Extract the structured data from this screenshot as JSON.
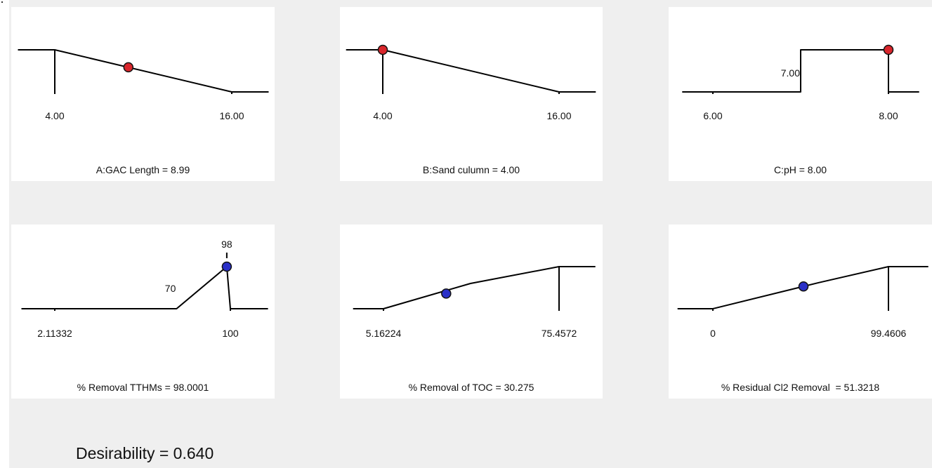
{
  "chart_data": [
    {
      "type": "line",
      "kind": "factor",
      "caption": "A:GAC Length = 8.99",
      "ticks": [
        {
          "value": 4,
          "label": "4.00"
        },
        {
          "value": 16,
          "label": "16.00"
        }
      ],
      "extra_labels": [],
      "xlim": [
        4,
        16
      ],
      "ylim": [
        0,
        1
      ],
      "curve": [
        [
          1.5,
          1
        ],
        [
          4,
          1
        ],
        [
          16,
          0
        ],
        [
          18.5,
          0
        ]
      ],
      "marker": {
        "x": 8.99,
        "y": 0.585,
        "color": "#d9262c"
      }
    },
    {
      "type": "line",
      "kind": "factor",
      "caption": "B:Sand culumn = 4.00",
      "ticks": [
        {
          "value": 4,
          "label": "4.00"
        },
        {
          "value": 16,
          "label": "16.00"
        }
      ],
      "extra_labels": [],
      "xlim": [
        4,
        16
      ],
      "ylim": [
        0,
        1
      ],
      "curve": [
        [
          1.5,
          1
        ],
        [
          4,
          1
        ],
        [
          16,
          0
        ],
        [
          18.5,
          0
        ]
      ],
      "marker": {
        "x": 4.0,
        "y": 1,
        "color": "#d9262c"
      }
    },
    {
      "type": "line",
      "kind": "factor",
      "caption": "C:pH = 8.00",
      "ticks": [
        {
          "value": 6,
          "label": "6.00"
        },
        {
          "value": 8,
          "label": "8.00"
        }
      ],
      "extra_labels": [
        {
          "value": 7,
          "label": "7.00"
        }
      ],
      "xlim": [
        6,
        8
      ],
      "ylim": [
        0,
        1
      ],
      "curve": [
        [
          5.65,
          0
        ],
        [
          7,
          0
        ],
        [
          7,
          1
        ],
        [
          8,
          1
        ],
        [
          8,
          0
        ],
        [
          8.35,
          0
        ]
      ],
      "marker": {
        "x": 8.0,
        "y": 1,
        "color": "#d9262c"
      }
    },
    {
      "type": "line",
      "kind": "response",
      "caption": "% Removal TTHMs = 98.0001",
      "ticks": [
        {
          "value": 2.11332,
          "label": "2.11332"
        },
        {
          "value": 100,
          "label": "100"
        }
      ],
      "extra_labels": [
        {
          "value": 70,
          "label": "70",
          "pos": "low"
        },
        {
          "value": 98,
          "label": "98",
          "pos": "high"
        }
      ],
      "xlim": [
        2.11332,
        100
      ],
      "ylim": [
        0,
        1
      ],
      "curve": [
        [
          -16.5,
          0
        ],
        [
          70,
          0
        ],
        [
          98,
          1
        ],
        [
          100,
          0
        ],
        [
          121,
          0
        ]
      ],
      "marker": {
        "x": 98.0001,
        "y": 1,
        "color": "#2a30c8"
      }
    },
    {
      "type": "line",
      "kind": "response",
      "caption": "% Removal of TOC = 30.275",
      "ticks": [
        {
          "value": 5.16224,
          "label": "5.16224"
        },
        {
          "value": 75.4572,
          "label": "75.4572"
        }
      ],
      "extra_labels": [],
      "xlim": [
        5.16224,
        75.4572
      ],
      "ylim": [
        0,
        1
      ],
      "curve": [
        [
          -7,
          0
        ],
        [
          5.16224,
          0
        ],
        [
          40,
          0.6
        ],
        [
          75.4572,
          1
        ],
        [
          90,
          1
        ]
      ],
      "marker": {
        "x": 30.275,
        "y": 0.36,
        "color": "#2a30c8"
      }
    },
    {
      "type": "line",
      "kind": "response",
      "caption": "% Residual Cl2 Removal  = 51.3218",
      "ticks": [
        {
          "value": 0,
          "label": "0"
        },
        {
          "value": 99.4606,
          "label": "99.4606"
        }
      ],
      "extra_labels": [],
      "xlim": [
        0,
        99.4606
      ],
      "ylim": [
        0,
        1
      ],
      "curve": [
        [
          -20,
          0
        ],
        [
          0,
          0
        ],
        [
          60,
          0.62
        ],
        [
          99.4606,
          1
        ],
        [
          122,
          1
        ]
      ],
      "marker": {
        "x": 51.3218,
        "y": 0.53,
        "color": "#2a30c8"
      }
    }
  ],
  "desirability": "Desirability = 0.640"
}
